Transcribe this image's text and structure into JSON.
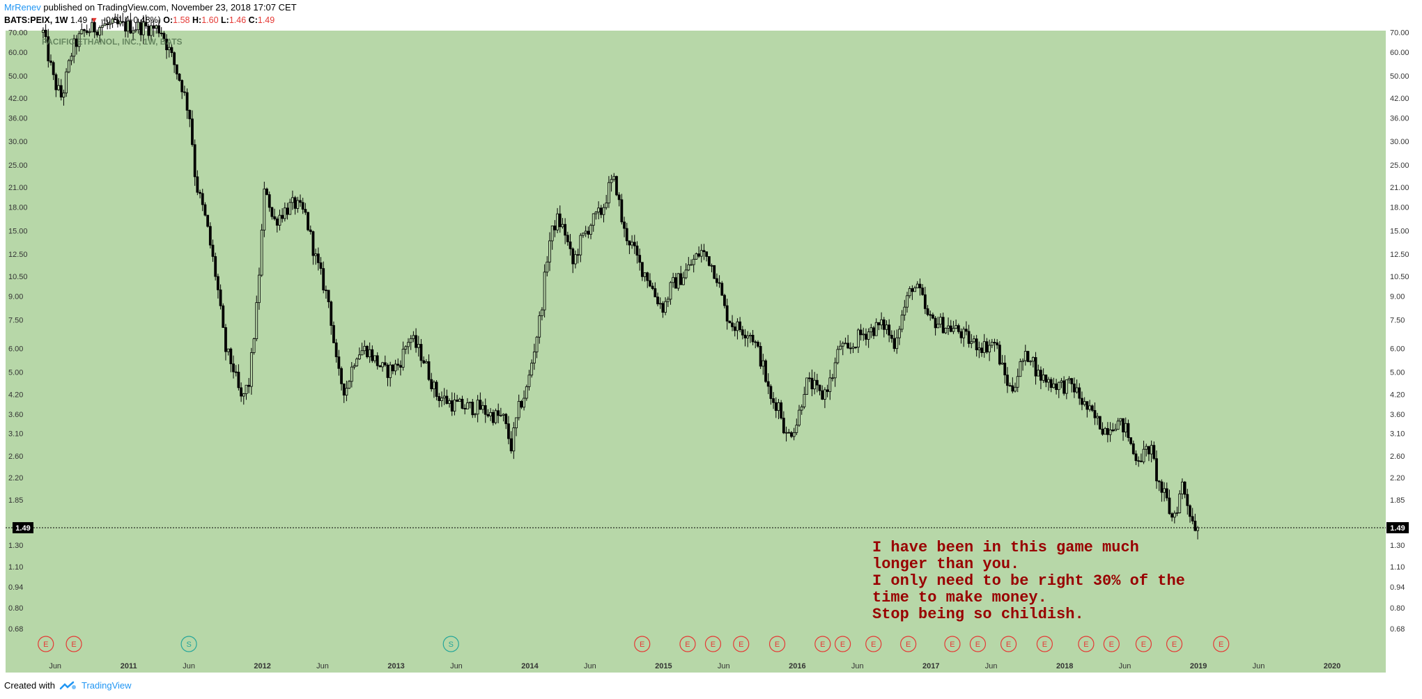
{
  "header": {
    "author": "MrRenev",
    "published_text": "published on TradingView.com, November 23, 2018 17:07 CET",
    "symbol": "BATS:PEIX, 1W",
    "last_price": "1.49",
    "change_arrow": "▼",
    "change_text": "−0.01 (−0.48%)",
    "open_label": "O:",
    "open": "1.58",
    "high_label": "H:",
    "high": "1.60",
    "low_label": "L:",
    "low": "1.46",
    "close_label": "C:",
    "close": "1.49"
  },
  "footer": {
    "created_with": "Created with",
    "brand": "TradingView"
  },
  "colors": {
    "plot_bg": "#b7d7a8",
    "candle": "#000000",
    "earnings": "#e53935",
    "split": "#26a69a",
    "annotation": "#990000",
    "link": "#2196f3"
  },
  "chart_data": {
    "type": "candlestick",
    "title": "PACIFIC ETHANOL, INC., 1W, BATS",
    "scale": "log",
    "y_ticks": [
      "70.00",
      "60.00",
      "50.00",
      "42.00",
      "36.00",
      "30.00",
      "25.00",
      "21.00",
      "18.00",
      "15.00",
      "12.50",
      "10.50",
      "9.00",
      "7.50",
      "6.00",
      "5.00",
      "4.20",
      "3.60",
      "3.10",
      "2.60",
      "2.20",
      "1.85",
      "1.30",
      "1.10",
      "0.94",
      "0.80",
      "0.68"
    ],
    "y_range": [
      0.62,
      71
    ],
    "x_range": [
      2010.35,
      2020.25
    ],
    "x_ticks": [
      {
        "label": "Jun",
        "t": 2010.45
      },
      {
        "label": "2011",
        "t": 2011.0
      },
      {
        "label": "Jun",
        "t": 2011.45
      },
      {
        "label": "2012",
        "t": 2012.0
      },
      {
        "label": "Jun",
        "t": 2012.45
      },
      {
        "label": "2013",
        "t": 2013.0
      },
      {
        "label": "Jun",
        "t": 2013.45
      },
      {
        "label": "2014",
        "t": 2014.0
      },
      {
        "label": "Jun",
        "t": 2014.45
      },
      {
        "label": "2015",
        "t": 2015.0
      },
      {
        "label": "Jun",
        "t": 2015.45
      },
      {
        "label": "2016",
        "t": 2016.0
      },
      {
        "label": "Jun",
        "t": 2016.45
      },
      {
        "label": "2017",
        "t": 2017.0
      },
      {
        "label": "Jun",
        "t": 2017.45
      },
      {
        "label": "2018",
        "t": 2018.0
      },
      {
        "label": "Jun",
        "t": 2018.45
      },
      {
        "label": "2019",
        "t": 2019.0
      },
      {
        "label": "Jun",
        "t": 2019.45
      },
      {
        "label": "2020",
        "t": 2020.0
      }
    ],
    "last_price_label": "1.49",
    "last_price": 1.49,
    "price_path": [
      [
        2010.36,
        70
      ],
      [
        2010.44,
        48
      ],
      [
        2010.5,
        42
      ],
      [
        2010.58,
        62
      ],
      [
        2010.66,
        70
      ],
      [
        2010.8,
        74
      ],
      [
        2011.1,
        73
      ],
      [
        2011.24,
        72
      ],
      [
        2011.32,
        58
      ],
      [
        2011.4,
        46
      ],
      [
        2011.46,
        36
      ],
      [
        2011.5,
        22
      ],
      [
        2011.58,
        16
      ],
      [
        2011.66,
        10
      ],
      [
        2011.72,
        6
      ],
      [
        2011.78,
        5.2
      ],
      [
        2011.84,
        4.0
      ],
      [
        2011.9,
        4.6
      ],
      [
        2011.96,
        8.5
      ],
      [
        2012.02,
        22
      ],
      [
        2012.08,
        16
      ],
      [
        2012.16,
        17.5
      ],
      [
        2012.24,
        18.5
      ],
      [
        2012.32,
        17
      ],
      [
        2012.4,
        12
      ],
      [
        2012.5,
        8.5
      ],
      [
        2012.56,
        5
      ],
      [
        2012.62,
        4.3
      ],
      [
        2012.7,
        5.8
      ],
      [
        2012.78,
        6.0
      ],
      [
        2012.84,
        5.5
      ],
      [
        2012.92,
        5.0
      ],
      [
        2013.02,
        5.3
      ],
      [
        2013.1,
        6.6
      ],
      [
        2013.2,
        5.6
      ],
      [
        2013.3,
        4.2
      ],
      [
        2013.42,
        3.9
      ],
      [
        2013.52,
        3.8
      ],
      [
        2013.62,
        3.8
      ],
      [
        2013.7,
        3.6
      ],
      [
        2013.8,
        3.5
      ],
      [
        2013.86,
        2.8
      ],
      [
        2013.92,
        3.8
      ],
      [
        2013.98,
        4.4
      ],
      [
        2014.02,
        5.6
      ],
      [
        2014.08,
        7.8
      ],
      [
        2014.14,
        13.5
      ],
      [
        2014.2,
        16.5
      ],
      [
        2014.26,
        15
      ],
      [
        2014.32,
        11.5
      ],
      [
        2014.38,
        13.8
      ],
      [
        2014.46,
        16
      ],
      [
        2014.54,
        17.5
      ],
      [
        2014.6,
        21.5
      ],
      [
        2014.64,
        22
      ],
      [
        2014.7,
        15
      ],
      [
        2014.76,
        13.5
      ],
      [
        2014.82,
        11.5
      ],
      [
        2014.88,
        10.5
      ],
      [
        2014.94,
        9.0
      ],
      [
        2015.0,
        8.2
      ],
      [
        2015.06,
        9.8
      ],
      [
        2015.14,
        10.5
      ],
      [
        2015.22,
        11.8
      ],
      [
        2015.28,
        12.8
      ],
      [
        2015.34,
        12.0
      ],
      [
        2015.4,
        10.5
      ],
      [
        2015.46,
        8.0
      ],
      [
        2015.52,
        7.2
      ],
      [
        2015.58,
        7.0
      ],
      [
        2015.66,
        6.7
      ],
      [
        2015.74,
        5.3
      ],
      [
        2015.8,
        4.0
      ],
      [
        2015.86,
        3.9
      ],
      [
        2015.92,
        3.0
      ],
      [
        2016.0,
        3.4
      ],
      [
        2016.06,
        4.6
      ],
      [
        2016.12,
        4.5
      ],
      [
        2016.18,
        4.1
      ],
      [
        2016.26,
        4.8
      ],
      [
        2016.32,
        6.2
      ],
      [
        2016.38,
        5.8
      ],
      [
        2016.46,
        6.6
      ],
      [
        2016.54,
        6.9
      ],
      [
        2016.6,
        7.1
      ],
      [
        2016.66,
        7.2
      ],
      [
        2016.72,
        6.2
      ],
      [
        2016.8,
        8.2
      ],
      [
        2016.86,
        9.8
      ],
      [
        2016.92,
        9.2
      ],
      [
        2016.98,
        7.5
      ],
      [
        2017.04,
        7.4
      ],
      [
        2017.12,
        7.1
      ],
      [
        2017.2,
        6.9
      ],
      [
        2017.3,
        6.3
      ],
      [
        2017.4,
        6.1
      ],
      [
        2017.48,
        6.3
      ],
      [
        2017.54,
        5.0
      ],
      [
        2017.6,
        4.3
      ],
      [
        2017.68,
        5.4
      ],
      [
        2017.74,
        5.8
      ],
      [
        2017.8,
        4.9
      ],
      [
        2017.9,
        4.6
      ],
      [
        2017.98,
        4.5
      ],
      [
        2018.06,
        4.5
      ],
      [
        2018.14,
        3.9
      ],
      [
        2018.22,
        3.5
      ],
      [
        2018.3,
        3.2
      ],
      [
        2018.38,
        3.4
      ],
      [
        2018.46,
        3.2
      ],
      [
        2018.52,
        2.6
      ],
      [
        2018.58,
        2.6
      ],
      [
        2018.64,
        2.8
      ],
      [
        2018.7,
        2.1
      ],
      [
        2018.76,
        1.85
      ],
      [
        2018.8,
        1.6
      ],
      [
        2018.84,
        1.75
      ],
      [
        2018.88,
        2.1
      ],
      [
        2018.92,
        1.8
      ],
      [
        2018.96,
        1.55
      ],
      [
        2019.0,
        1.49
      ]
    ],
    "markers": [
      {
        "kind": "E",
        "t": 2010.38
      },
      {
        "kind": "E",
        "t": 2010.59
      },
      {
        "kind": "S",
        "t": 2011.45
      },
      {
        "kind": "S",
        "t": 2013.41
      },
      {
        "kind": "E",
        "t": 2014.84
      },
      {
        "kind": "E",
        "t": 2015.18
      },
      {
        "kind": "E",
        "t": 2015.37
      },
      {
        "kind": "E",
        "t": 2015.58
      },
      {
        "kind": "E",
        "t": 2015.85
      },
      {
        "kind": "E",
        "t": 2016.19
      },
      {
        "kind": "E",
        "t": 2016.34
      },
      {
        "kind": "E",
        "t": 2016.57
      },
      {
        "kind": "E",
        "t": 2016.83
      },
      {
        "kind": "E",
        "t": 2017.16
      },
      {
        "kind": "E",
        "t": 2017.35
      },
      {
        "kind": "E",
        "t": 2017.58
      },
      {
        "kind": "E",
        "t": 2017.85
      },
      {
        "kind": "E",
        "t": 2018.16
      },
      {
        "kind": "E",
        "t": 2018.35
      },
      {
        "kind": "E",
        "t": 2018.59
      },
      {
        "kind": "E",
        "t": 2018.82
      },
      {
        "kind": "E",
        "t": 2019.17
      }
    ],
    "annotation": [
      "I have been in this game much",
      "longer than you.",
      "I only need to be right 30% of the",
      "time to make money.",
      "Stop being so childish."
    ]
  }
}
